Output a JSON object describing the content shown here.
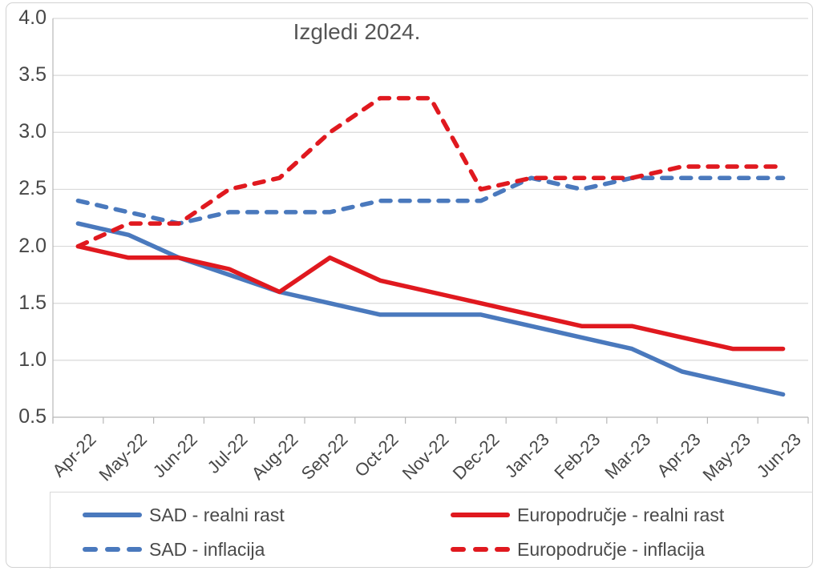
{
  "chart_data": {
    "type": "line",
    "title": "Izgledi 2024.",
    "categories": [
      "Apr-22",
      "May-22",
      "Jun-22",
      "Jul-22",
      "Aug-22",
      "Sep-22",
      "Oct-22",
      "Nov-22",
      "Dec-22",
      "Jan-23",
      "Feb-23",
      "Mar-23",
      "Apr-23",
      "May-23",
      "Jun-23"
    ],
    "xlabel": "",
    "ylabel": "",
    "ylim": [
      0.5,
      4.0
    ],
    "ytick_step": 0.5,
    "ytick_labels": [
      "4.0",
      "3.5",
      "3.0",
      "2.5",
      "2.0",
      "1.5",
      "1.0",
      "0.5"
    ],
    "grid": true,
    "legend_position": "bottom",
    "series": [
      {
        "name": "SAD - realni rast",
        "color": "#4a79bd",
        "style": "solid",
        "values": [
          2.2,
          2.1,
          1.9,
          1.75,
          1.6,
          1.5,
          1.4,
          1.4,
          1.4,
          1.3,
          1.2,
          1.1,
          0.9,
          0.8,
          0.7
        ]
      },
      {
        "name": "SAD - inflacija",
        "color": "#4a79bd",
        "style": "dashed",
        "values": [
          2.4,
          2.3,
          2.2,
          2.3,
          2.3,
          2.3,
          2.4,
          2.4,
          2.4,
          2.6,
          2.5,
          2.6,
          2.6,
          2.6,
          2.6
        ]
      },
      {
        "name": "Europodručje - realni rast",
        "color": "#e0191f",
        "style": "solid",
        "values": [
          2.0,
          1.9,
          1.9,
          1.8,
          1.6,
          1.9,
          1.7,
          1.6,
          1.5,
          1.4,
          1.3,
          1.3,
          1.2,
          1.1,
          1.1
        ]
      },
      {
        "name": "Europodručje - inflacija",
        "color": "#e0191f",
        "style": "dashed",
        "values": [
          2.0,
          2.2,
          2.2,
          2.5,
          2.6,
          3.0,
          3.3,
          3.3,
          2.5,
          2.6,
          2.6,
          2.6,
          2.7,
          2.7,
          2.7
        ]
      }
    ],
    "colors": {
      "blue_series": "#4a79bd",
      "red_series": "#e0191f",
      "gridline": "#d9d9d9",
      "axis_line": "#b7b7b7",
      "text": "#4a4a4a"
    }
  }
}
